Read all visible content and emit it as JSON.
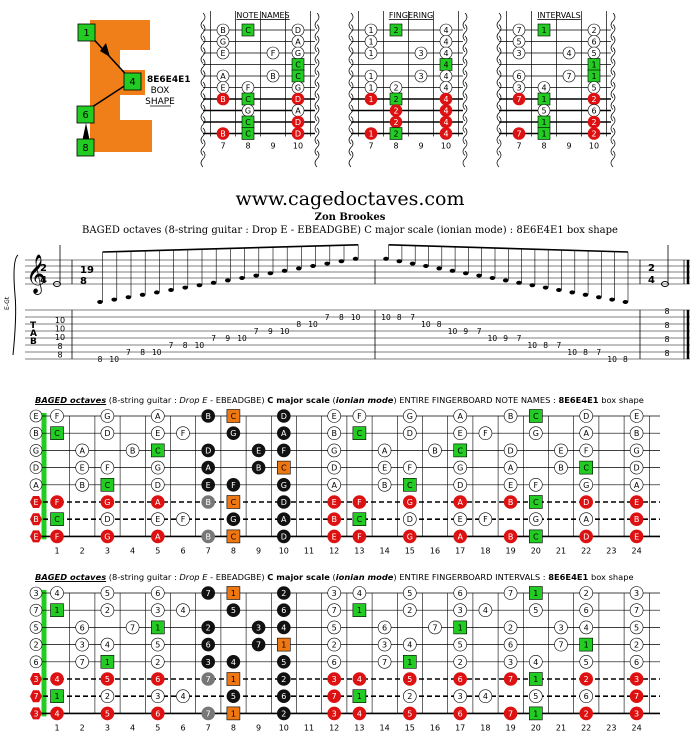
{
  "header": {
    "box_label": "8E6E4E1",
    "box_word": "BOX",
    "shape_word": "SHAPE",
    "big_letter": "E",
    "letter_notes": [
      "1",
      "4",
      "6",
      "8"
    ]
  },
  "mini_diagrams": [
    {
      "title": "NOTE NAMES",
      "rows": [
        [
          "B",
          "C",
          "",
          "D"
        ],
        [
          "G",
          "",
          "",
          "A"
        ],
        [
          "E",
          "",
          "F",
          "G"
        ],
        [
          "",
          "",
          "",
          "C"
        ],
        [
          "A",
          "",
          "B",
          "C"
        ],
        [
          "E",
          "F",
          "",
          "G"
        ],
        [
          "B",
          "C",
          "",
          "D"
        ],
        [
          "",
          "G",
          "",
          "A"
        ],
        [
          "",
          "C",
          "",
          "D"
        ],
        [
          "B",
          "C",
          "",
          "D"
        ]
      ]
    },
    {
      "title": "FINGERING",
      "rows": [
        [
          "1",
          "2",
          "",
          "4"
        ],
        [
          "1",
          "",
          "",
          "4"
        ],
        [
          "1",
          "",
          "3",
          "4"
        ],
        [
          "",
          "",
          "",
          "4"
        ],
        [
          "1",
          "",
          "3",
          "4"
        ],
        [
          "1",
          "2",
          "",
          "4"
        ],
        [
          "1",
          "2",
          "",
          "4"
        ],
        [
          "",
          "2",
          "",
          "4"
        ],
        [
          "",
          "2",
          "",
          "4"
        ],
        [
          "1",
          "2",
          "",
          "4"
        ]
      ]
    },
    {
      "title": "INTERVALS",
      "rows": [
        [
          "7",
          "1",
          "",
          "2"
        ],
        [
          "5",
          "",
          "",
          "6"
        ],
        [
          "3",
          "",
          "4",
          "5"
        ],
        [
          "",
          "",
          "",
          "1"
        ],
        [
          "6",
          "",
          "7",
          "1"
        ],
        [
          "3",
          "4",
          "",
          "5"
        ],
        [
          "7",
          "1",
          "",
          "2"
        ],
        [
          "",
          "5",
          "",
          "6"
        ],
        [
          "",
          "1",
          "",
          "2"
        ],
        [
          "7",
          "1",
          "",
          "2"
        ]
      ]
    }
  ],
  "mini_frets": [
    "7",
    "8",
    "9",
    "10"
  ],
  "title": {
    "site": "www.cagedoctaves.com",
    "author": "Zon Brookes",
    "subtitle": "BAGED octaves (8-string guitar : Drop E - EBEADGBE) C major scale (ionian mode) : 8E6E4E1 box shape"
  },
  "notation": {
    "instrument_label": "E-Gt",
    "time_sig_start": [
      "2",
      "4"
    ],
    "time_sig_mid": [
      "19",
      "8"
    ],
    "time_sig_end": [
      "2",
      "4"
    ],
    "tab_letters": [
      "T",
      "A",
      "B"
    ],
    "chord_start": [
      "10",
      "10",
      "10",
      "8",
      "8"
    ],
    "chord_end": [
      "8",
      "8",
      "8",
      "8"
    ],
    "tab_ascending": [
      {
        "f": "8",
        "s": 7
      },
      {
        "f": "10",
        "s": 7
      },
      {
        "f": "7",
        "s": 6
      },
      {
        "f": "8",
        "s": 6
      },
      {
        "f": "10",
        "s": 6
      },
      {
        "f": "7",
        "s": 5
      },
      {
        "f": "8",
        "s": 5
      },
      {
        "f": "10",
        "s": 5
      },
      {
        "f": "7",
        "s": 4
      },
      {
        "f": "9",
        "s": 4
      },
      {
        "f": "10",
        "s": 4
      },
      {
        "f": "7",
        "s": 3
      },
      {
        "f": "9",
        "s": 3
      },
      {
        "f": "10",
        "s": 3
      },
      {
        "f": "8",
        "s": 2
      },
      {
        "f": "10",
        "s": 2
      },
      {
        "f": "7",
        "s": 1
      },
      {
        "f": "8",
        "s": 1
      },
      {
        "f": "10",
        "s": 1
      }
    ],
    "tab_descending": [
      {
        "f": "10",
        "s": 1
      },
      {
        "f": "8",
        "s": 1
      },
      {
        "f": "7",
        "s": 1
      },
      {
        "f": "10",
        "s": 2
      },
      {
        "f": "8",
        "s": 2
      },
      {
        "f": "10",
        "s": 3
      },
      {
        "f": "9",
        "s": 3
      },
      {
        "f": "7",
        "s": 3
      },
      {
        "f": "10",
        "s": 4
      },
      {
        "f": "9",
        "s": 4
      },
      {
        "f": "7",
        "s": 4
      },
      {
        "f": "10",
        "s": 5
      },
      {
        "f": "8",
        "s": 5
      },
      {
        "f": "7",
        "s": 5
      },
      {
        "f": "10",
        "s": 6
      },
      {
        "f": "8",
        "s": 6
      },
      {
        "f": "7",
        "s": 6
      },
      {
        "f": "10",
        "s": 7
      },
      {
        "f": "8",
        "s": 7
      }
    ]
  },
  "fretboards": {
    "notes_title": {
      "part1": "BAGED octaves",
      "part2": "(8-string guitar :",
      "part3": "Drop E",
      "part4": "- EBEADGBE)",
      "part5": "C major scale",
      "part6": "(",
      "part7": "ionian mode",
      "part8": ") ENTIRE FINGERBOARD  NOTE NAMES :",
      "part9": "8E6E4E1",
      "part10": "box shape"
    },
    "intervals_title": {
      "part1": "BAGED octaves",
      "part2": "(8-string guitar :",
      "part3": "Drop E",
      "part4": "- EBEADGBE)",
      "part5": "C major scale",
      "part6": "(",
      "part7": "ionian mode",
      "part8": ") ENTIRE FINGERBOARD  INTERVALS :",
      "part9": "8E6E4E1",
      "part10": "box shape"
    },
    "fret_numbers": [
      "1",
      "2",
      "3",
      "4",
      "5",
      "6",
      "7",
      "8",
      "9",
      "10",
      "11",
      "12",
      "13",
      "14",
      "15",
      "16",
      "17",
      "18",
      "19",
      "20",
      "21",
      "22",
      "23",
      "24"
    ],
    "open_notes": [
      "E",
      "B",
      "G",
      "D",
      "A",
      "E",
      "B",
      "E"
    ],
    "open_intervals": [
      "3",
      "7",
      "5",
      "2",
      "6",
      "3",
      "7",
      "3"
    ]
  },
  "colors": {
    "root": "#22cc22",
    "red": "#dd1111",
    "orange": "#ee7711",
    "black": "#111111",
    "gray": "#777777",
    "letter": "#f07f1a"
  }
}
